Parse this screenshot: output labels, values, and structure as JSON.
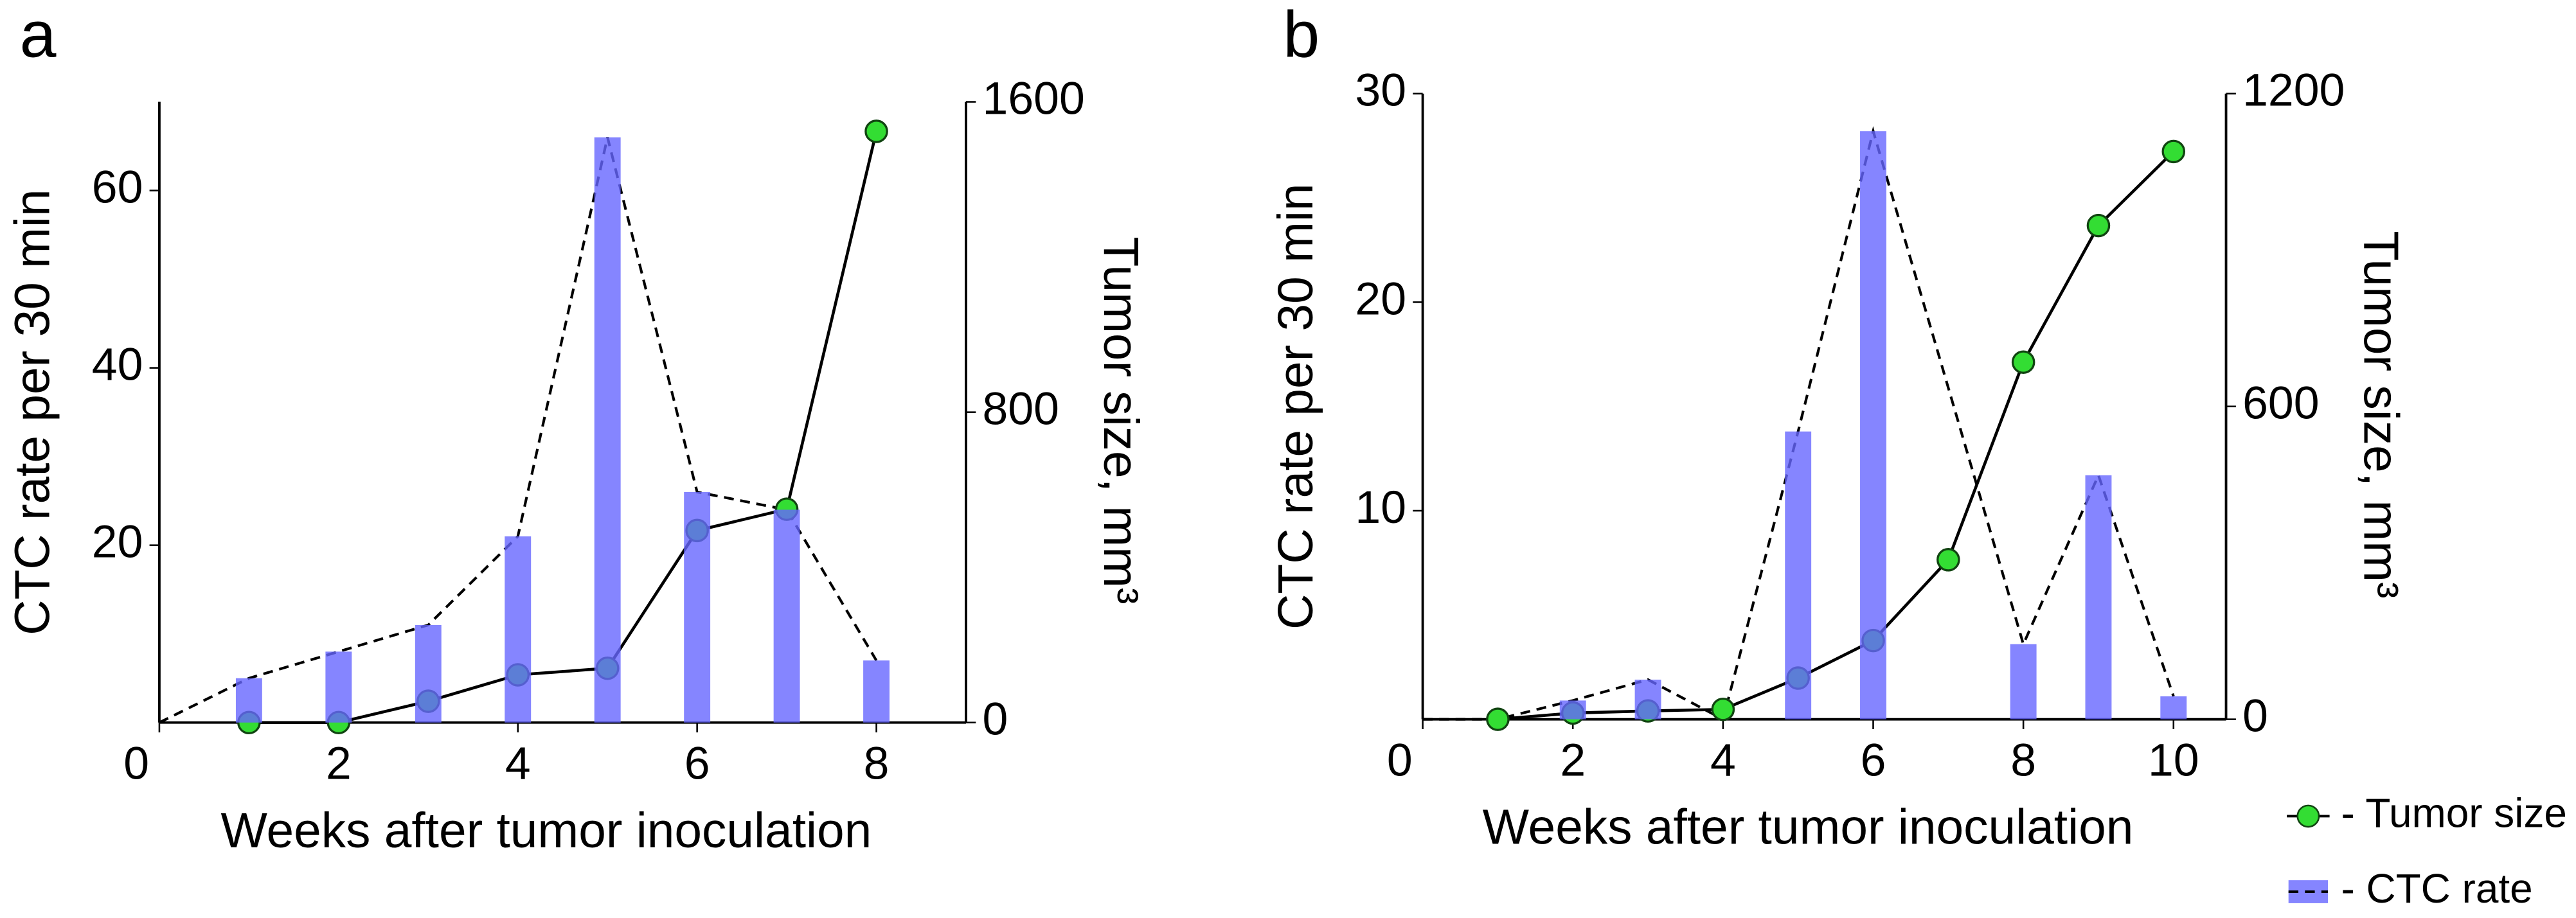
{
  "chart_data": [
    {
      "type": "bar",
      "panel_label": "a",
      "ylabel": "CTC rate per 30 min",
      "y2label": "Tumor size, mm³",
      "xlabel": "Weeks after tumor inoculation",
      "xlim": [
        0,
        9
      ],
      "xticks": [
        0,
        2,
        4,
        6,
        8
      ],
      "ylim": [
        0,
        70
      ],
      "yticks": [
        20,
        40,
        60
      ],
      "y2lim": [
        0,
        1600
      ],
      "y2ticks": [
        0,
        800,
        1600
      ],
      "series": [
        {
          "color": "#6666ff",
          "line_style": "dashed",
          "x": [
            0,
            1,
            2,
            3,
            4,
            5,
            6,
            7,
            8
          ],
          "values": [
            0,
            5,
            8,
            11,
            21,
            66,
            26,
            24,
            7
          ]
        },
        {
          "color": "#33dd33",
          "marker": "circle",
          "axis": "y2",
          "x": [
            1,
            2,
            3,
            4,
            5,
            6,
            7,
            8
          ],
          "values": [
            0,
            0,
            55,
            123,
            140,
            495,
            550,
            1524
          ]
        }
      ]
    },
    {
      "type": "bar",
      "panel_label": "b",
      "ylabel": "CTC rate per 30 min",
      "y2label": "Tumor size, mm³",
      "xlabel": "Weeks after tumor inoculation",
      "xlim": [
        0,
        10.7
      ],
      "xticks": [
        0,
        2,
        4,
        6,
        8,
        10
      ],
      "ylim": [
        0,
        30
      ],
      "yticks": [
        10,
        20,
        30
      ],
      "y2lim": [
        0,
        1200
      ],
      "y2ticks": [
        0,
        600,
        1200
      ],
      "series": [
        {
          "name": "- CTC rate",
          "color": "#6666ff",
          "line_style": "dashed",
          "x": [
            0,
            1,
            2,
            3,
            4,
            5,
            6,
            8,
            9,
            10
          ],
          "values": [
            0,
            0,
            0.9,
            1.9,
            0,
            13.8,
            28.2,
            3.6,
            11.7,
            1.1
          ]
        },
        {
          "name": "- Tumor size",
          "color": "#33dd33",
          "marker": "circle",
          "axis": "y2",
          "x": [
            1,
            2,
            3,
            4,
            5,
            6,
            7,
            8,
            9,
            10
          ],
          "values": [
            0,
            12,
            16,
            19,
            79,
            151,
            306,
            685,
            947,
            1089
          ]
        }
      ]
    }
  ]
}
